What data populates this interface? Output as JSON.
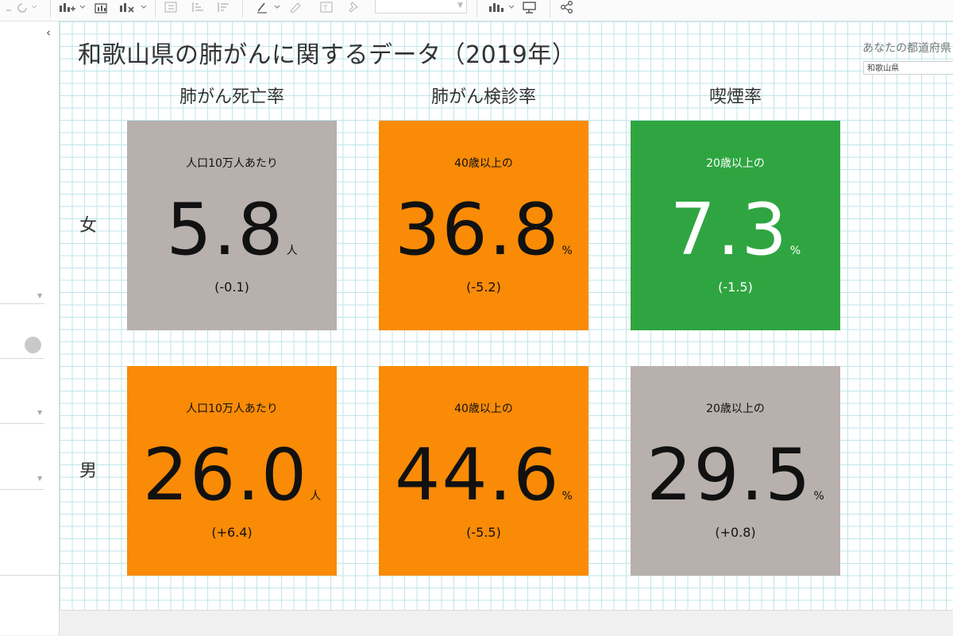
{
  "colors": {
    "gray": "#b7b0ad",
    "orange": "#f98b06",
    "green": "#2fa541",
    "dark_text": "#111111",
    "light_text": "#ffffff"
  },
  "toolbar": {
    "icons": [
      "undo-redo-icon",
      "new-worksheet-icon",
      "duplicate-sheet-icon",
      "clear-sheet-icon",
      "swap-icon",
      "sort-ascending-icon",
      "sort-descending-icon",
      "highlight-icon",
      "annotate-icon",
      "label-icon",
      "pin-icon",
      "show-me-icon",
      "presentation-icon",
      "share-icon"
    ]
  },
  "dashboard": {
    "title": "和歌山県の肺がんに関するデータ（2019年）",
    "prefecture_filter": {
      "label": "あなたの都道府県",
      "value": "和歌山県"
    },
    "columns": [
      {
        "header": "肺がん死亡率"
      },
      {
        "header": "肺がん検診率"
      },
      {
        "header": "喫煙率"
      }
    ],
    "rows": [
      {
        "label": "女",
        "tiles": [
          {
            "sub": "人口10万人あたり",
            "value": "5.8",
            "unit": "人",
            "change": "(-0.1)",
            "color": "#b7b0ad",
            "text_color": "#111111"
          },
          {
            "sub": "40歳以上の",
            "value": "36.8",
            "unit": "%",
            "change": "(-5.2)",
            "color": "#f98b06",
            "text_color": "#111111"
          },
          {
            "sub": "20歳以上の",
            "value": "7.3",
            "unit": "%",
            "change": "(-1.5)",
            "color": "#2fa541",
            "text_color": "#ffffff"
          }
        ]
      },
      {
        "label": "男",
        "tiles": [
          {
            "sub": "人口10万人あたり",
            "value": "26.0",
            "unit": "人",
            "change": "(+6.4)",
            "color": "#f98b06",
            "text_color": "#111111"
          },
          {
            "sub": "40歳以上の",
            "value": "44.6",
            "unit": "%",
            "change": "(-5.5)",
            "color": "#f98b06",
            "text_color": "#111111"
          },
          {
            "sub": "20歳以上の",
            "value": "29.5",
            "unit": "%",
            "change": "(+0.8)",
            "color": "#b7b0ad",
            "text_color": "#111111"
          }
        ]
      }
    ]
  }
}
